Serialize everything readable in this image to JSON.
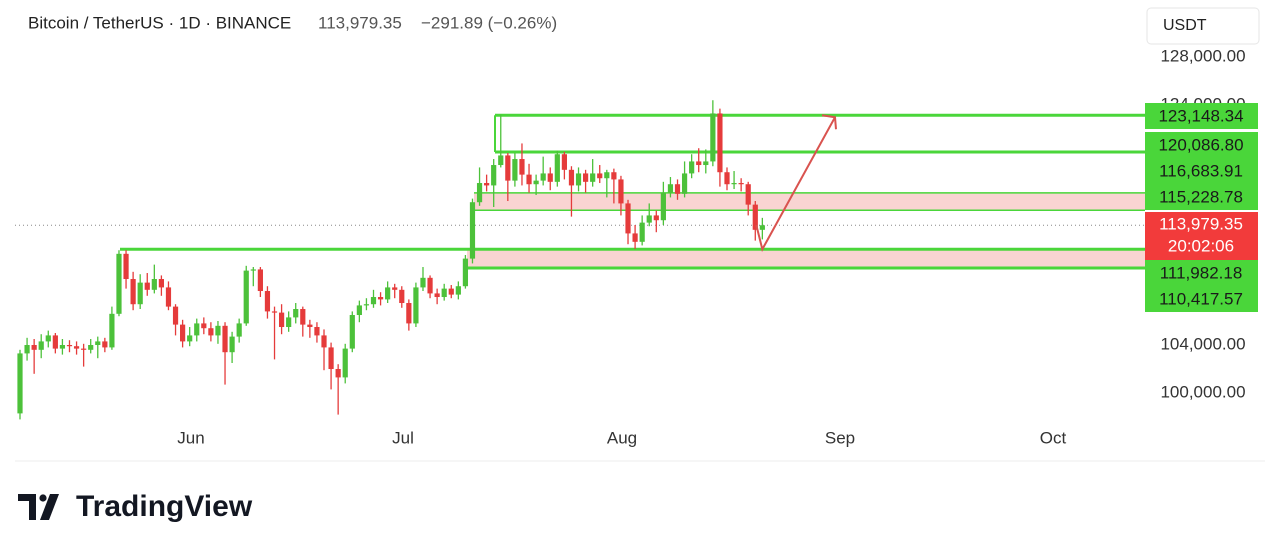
{
  "chart_data": {
    "type": "candlestick",
    "title": "Bitcoin / TetherUS · 1D · BINANCE",
    "last_label": "113,979.35",
    "change": "−291.89 (−0.26%)",
    "currency": "USDT",
    "countdown": "20:02:06",
    "brand": "TradingView",
    "x_labels": [
      "Jun",
      "Jul",
      "Aug",
      "Sep",
      "Oct"
    ],
    "up_color": "#4cc13a",
    "down_color": "#e53b3b",
    "level_color": "#4ad63a",
    "zone_color": "#f9d4d2",
    "ylim": [
      97750,
      129420
    ],
    "grid": false,
    "yticks": [
      {
        "value": 100000,
        "label": "100,000.00"
      },
      {
        "value": 104000,
        "label": "104,000.00"
      },
      {
        "value": 124000,
        "label": "124,000.00"
      },
      {
        "value": 128000,
        "label": "128,000.00"
      }
    ],
    "levels": [
      {
        "value": 123148.34,
        "label": "123,148.34"
      },
      {
        "value": 120086.8,
        "label": "120,086.80"
      },
      {
        "value": 116683.91,
        "label": "116,683.91"
      },
      {
        "value": 115228.78,
        "label": "115,228.78"
      },
      {
        "value": 111982.18,
        "label": "111,982.18"
      },
      {
        "value": 110417.57,
        "label": "110,417.57"
      }
    ],
    "last_price": {
      "value": 113979.35,
      "label": "113,979.35"
    },
    "ohlc": [
      [
        98300,
        103600,
        97800,
        103300
      ],
      [
        103300,
        104600,
        102700,
        104000
      ],
      [
        104000,
        104500,
        101600,
        103600
      ],
      [
        103600,
        104900,
        102900,
        104300
      ],
      [
        104300,
        105200,
        103800,
        104800
      ],
      [
        104800,
        105000,
        103300,
        103700
      ],
      [
        103700,
        104500,
        103200,
        104000
      ],
      [
        104000,
        104400,
        103400,
        103900
      ],
      [
        103900,
        104300,
        103200,
        103700
      ],
      [
        103700,
        104100,
        102200,
        103600
      ],
      [
        103600,
        104500,
        103300,
        104000
      ],
      [
        104000,
        104700,
        102900,
        104300
      ],
      [
        104300,
        104600,
        103400,
        103800
      ],
      [
        103800,
        107200,
        103600,
        106600
      ],
      [
        106600,
        111900,
        106400,
        111600
      ],
      [
        111600,
        111900,
        108700,
        109500
      ],
      [
        109500,
        110100,
        106900,
        107400
      ],
      [
        107400,
        109900,
        107000,
        109200
      ],
      [
        109200,
        110000,
        108100,
        108600
      ],
      [
        108600,
        110700,
        108300,
        109500
      ],
      [
        109500,
        109800,
        108100,
        108800
      ],
      [
        108800,
        109300,
        106900,
        107200
      ],
      [
        107200,
        107400,
        104800,
        105700
      ],
      [
        105700,
        106100,
        103800,
        104300
      ],
      [
        104300,
        105500,
        103900,
        104800
      ],
      [
        104800,
        106200,
        104300,
        105800
      ],
      [
        105800,
        106300,
        104900,
        105400
      ],
      [
        105400,
        105900,
        104300,
        104800
      ],
      [
        104800,
        106000,
        104100,
        105600
      ],
      [
        105600,
        105900,
        100700,
        103400
      ],
      [
        103400,
        105100,
        102500,
        104700
      ],
      [
        104700,
        106200,
        104200,
        105800
      ],
      [
        105800,
        110600,
        105600,
        110200
      ],
      [
        110200,
        110500,
        108900,
        110300
      ],
      [
        110300,
        110500,
        108000,
        108500
      ],
      [
        108500,
        108900,
        106200,
        106800
      ],
      [
        106800,
        107200,
        102800,
        106700
      ],
      [
        106700,
        107400,
        104900,
        105500
      ],
      [
        105500,
        106800,
        105100,
        106300
      ],
      [
        106300,
        107500,
        105800,
        107000
      ],
      [
        107000,
        107200,
        104700,
        105700
      ],
      [
        105700,
        106100,
        104600,
        105500
      ],
      [
        105500,
        105900,
        104200,
        104800
      ],
      [
        104800,
        105300,
        101900,
        103800
      ],
      [
        103800,
        104200,
        100300,
        102000
      ],
      [
        102000,
        102400,
        98200,
        101300
      ],
      [
        101300,
        104100,
        100800,
        103700
      ],
      [
        103700,
        106800,
        103400,
        106500
      ],
      [
        106500,
        107700,
        105900,
        107300
      ],
      [
        107300,
        107900,
        106900,
        107400
      ],
      [
        107400,
        108600,
        107100,
        108000
      ],
      [
        108000,
        108400,
        107300,
        107800
      ],
      [
        107800,
        109300,
        107500,
        108800
      ],
      [
        108800,
        109100,
        107900,
        108600
      ],
      [
        108600,
        108900,
        107100,
        107500
      ],
      [
        107500,
        107800,
        105200,
        105800
      ],
      [
        105800,
        109200,
        105500,
        108800
      ],
      [
        108800,
        110500,
        108500,
        109600
      ],
      [
        109600,
        109800,
        107900,
        108300
      ],
      [
        108300,
        108700,
        107400,
        108000
      ],
      [
        108000,
        109100,
        107700,
        108700
      ],
      [
        108700,
        109000,
        107900,
        108200
      ],
      [
        108200,
        109300,
        107800,
        108900
      ],
      [
        108900,
        111500,
        108700,
        111200
      ],
      [
        111200,
        116200,
        110800,
        115900
      ],
      [
        115900,
        118800,
        115600,
        117500
      ],
      [
        117500,
        118200,
        116800,
        117300
      ],
      [
        117300,
        119500,
        115500,
        119000
      ],
      [
        119000,
        123200,
        118800,
        119800
      ],
      [
        119800,
        120000,
        116000,
        117700
      ],
      [
        117700,
        120000,
        117200,
        119500
      ],
      [
        119500,
        120800,
        117300,
        118200
      ],
      [
        118200,
        119100,
        116700,
        117400
      ],
      [
        117400,
        118200,
        116500,
        117700
      ],
      [
        117700,
        119700,
        117300,
        118300
      ],
      [
        118300,
        118800,
        116900,
        117600
      ],
      [
        117600,
        120200,
        117200,
        119900
      ],
      [
        119900,
        120100,
        117800,
        118600
      ],
      [
        118600,
        118900,
        114700,
        117300
      ],
      [
        117300,
        118800,
        116800,
        118300
      ],
      [
        118300,
        118600,
        116700,
        117600
      ],
      [
        117600,
        119500,
        117200,
        118300
      ],
      [
        118300,
        119000,
        117500,
        117900
      ],
      [
        117900,
        118600,
        116300,
        118400
      ],
      [
        118400,
        118700,
        115800,
        117800
      ],
      [
        117800,
        118100,
        114800,
        115800
      ],
      [
        115800,
        116100,
        112400,
        113300
      ],
      [
        113300,
        114000,
        112000,
        112600
      ],
      [
        112600,
        114800,
        112300,
        114200
      ],
      [
        114200,
        115800,
        113900,
        114800
      ],
      [
        114800,
        115200,
        113400,
        114400
      ],
      [
        114400,
        117600,
        114000,
        116700
      ],
      [
        116700,
        118000,
        116300,
        117400
      ],
      [
        117400,
        117800,
        116100,
        116600
      ],
      [
        116600,
        119300,
        116300,
        118300
      ],
      [
        118300,
        119900,
        117900,
        119300
      ],
      [
        119300,
        120400,
        118400,
        119000
      ],
      [
        119000,
        120300,
        118300,
        119300
      ],
      [
        119300,
        124400,
        118900,
        123300
      ],
      [
        123300,
        123700,
        117200,
        118400
      ],
      [
        118400,
        118800,
        116900,
        117400
      ],
      [
        117400,
        118500,
        117000,
        117500
      ],
      [
        117500,
        117900,
        116800,
        117400
      ],
      [
        117400,
        117600,
        114800,
        115700
      ],
      [
        115700,
        116000,
        112700,
        113600
      ],
      [
        113600,
        114600,
        112800,
        113979.35
      ]
    ]
  }
}
